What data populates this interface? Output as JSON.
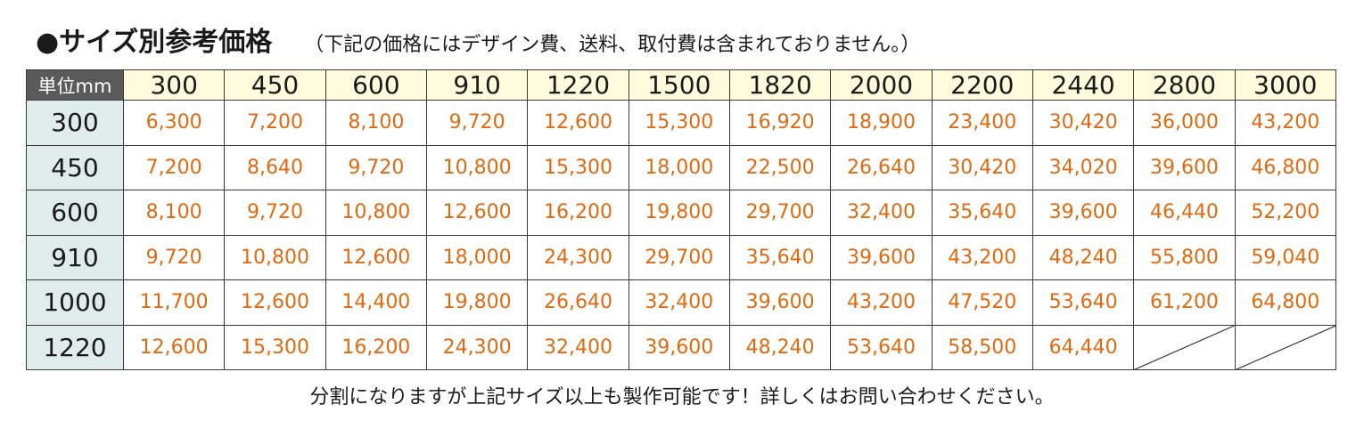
{
  "title": "●サイズ別参考価格",
  "note": "（下記の価格にはデザイン費、送料、取付費は含まれておりません。）",
  "table": {
    "corner_label": "単位mm",
    "columns": [
      "300",
      "450",
      "600",
      "910",
      "1220",
      "1500",
      "1820",
      "2000",
      "2200",
      "2440",
      "2800",
      "3000"
    ],
    "rows": [
      {
        "label": "300",
        "prices": [
          "6,300",
          "7,200",
          "8,100",
          "9,720",
          "12,600",
          "15,300",
          "16,920",
          "18,900",
          "23,400",
          "30,420",
          "36,000",
          "43,200"
        ]
      },
      {
        "label": "450",
        "prices": [
          "7,200",
          "8,640",
          "9,720",
          "10,800",
          "15,300",
          "18,000",
          "22,500",
          "26,640",
          "30,420",
          "34,020",
          "39,600",
          "46,800"
        ]
      },
      {
        "label": "600",
        "prices": [
          "8,100",
          "9,720",
          "10,800",
          "12,600",
          "16,200",
          "19,800",
          "29,700",
          "32,400",
          "35,640",
          "39,600",
          "46,440",
          "52,200"
        ]
      },
      {
        "label": "910",
        "prices": [
          "9,720",
          "10,800",
          "12,600",
          "18,000",
          "24,300",
          "29,700",
          "35,640",
          "39,600",
          "43,200",
          "48,240",
          "55,800",
          "59,040"
        ]
      },
      {
        "label": "1000",
        "prices": [
          "11,700",
          "12,600",
          "14,400",
          "19,800",
          "26,640",
          "32,400",
          "39,600",
          "43,200",
          "47,520",
          "53,640",
          "61,200",
          "64,800"
        ]
      },
      {
        "label": "1220",
        "prices": [
          "12,600",
          "15,300",
          "16,200",
          "24,300",
          "32,400",
          "39,600",
          "48,240",
          "53,640",
          "58,500",
          "64,440",
          null,
          null
        ]
      }
    ]
  },
  "footer": "分割になりますが上記サイズ以上も製作可能です！詳しくはお問い合わせください。",
  "colors": {
    "price_text": "#e06a10",
    "header_bg": "#fffbdc",
    "row_header_bg": "#e0ecec",
    "corner_bg": "#5a5a5a"
  }
}
